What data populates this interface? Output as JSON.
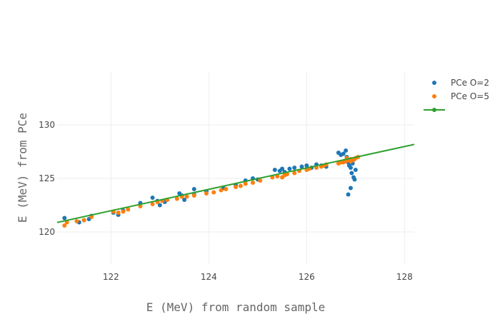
{
  "chart_data": {
    "type": "scatter",
    "title": "",
    "xlabel": "E (MeV) from random sample",
    "ylabel": "E (MeV) from PCe",
    "xlim": [
      120.9,
      128.2
    ],
    "ylim": [
      117.0,
      135.0
    ],
    "x_ticks": [
      122,
      124,
      126,
      128
    ],
    "y_ticks": [
      120,
      125,
      130
    ],
    "grid": true,
    "legend_position": "top-right",
    "series": [
      {
        "name": "PCe O=2",
        "color": "#1f77b4",
        "mode": "markers",
        "x": [
          121.05,
          121.35,
          121.45,
          121.6,
          121.55,
          122.05,
          122.15,
          122.25,
          122.6,
          122.85,
          122.95,
          123.0,
          123.1,
          123.4,
          123.45,
          123.5,
          123.7,
          123.7,
          123.95,
          124.3,
          124.55,
          124.75,
          124.9,
          125.0,
          125.35,
          125.45,
          125.5,
          125.55,
          125.65,
          125.75,
          125.9,
          126.0,
          126.1,
          126.2,
          126.3,
          126.4,
          126.65,
          126.7,
          126.75,
          126.8,
          126.82,
          126.85,
          126.87,
          126.88,
          126.9,
          126.92,
          126.94,
          126.96,
          126.98,
          127.0,
          126.85,
          126.9
        ],
        "y": [
          121.3,
          120.9,
          121.1,
          121.5,
          121.2,
          121.8,
          121.6,
          122.0,
          122.7,
          123.2,
          122.9,
          122.5,
          122.8,
          123.6,
          123.4,
          123.0,
          124.0,
          123.5,
          123.8,
          124.1,
          124.4,
          124.8,
          125.0,
          124.9,
          125.8,
          125.7,
          125.9,
          125.6,
          125.9,
          126.0,
          126.1,
          126.2,
          126.0,
          126.3,
          126.2,
          126.1,
          127.4,
          127.2,
          127.3,
          127.6,
          127.0,
          126.5,
          126.2,
          126.7,
          126.0,
          125.5,
          126.4,
          125.1,
          124.9,
          125.8,
          123.5,
          124.1
        ]
      },
      {
        "name": "PCe O=5",
        "color": "#ff7f0e",
        "mode": "markers",
        "x": [
          121.05,
          121.1,
          121.3,
          121.45,
          121.6,
          122.05,
          122.15,
          122.25,
          122.35,
          122.6,
          122.85,
          122.95,
          123.05,
          123.15,
          123.35,
          123.45,
          123.55,
          123.7,
          123.95,
          124.1,
          124.25,
          124.35,
          124.55,
          124.65,
          124.75,
          124.9,
          125.05,
          125.3,
          125.4,
          125.5,
          125.55,
          125.6,
          125.75,
          125.85,
          126.0,
          126.05,
          126.2,
          126.3,
          126.35,
          126.4,
          126.65,
          126.75,
          126.8,
          126.85,
          126.9,
          126.95,
          127.0,
          127.05,
          126.7,
          126.82,
          126.9,
          126.98
        ],
        "y": [
          120.6,
          120.9,
          121.0,
          121.1,
          121.4,
          121.9,
          121.8,
          121.9,
          122.1,
          122.4,
          122.6,
          122.8,
          122.9,
          123.0,
          123.1,
          123.3,
          123.3,
          123.4,
          123.6,
          123.7,
          123.9,
          124.0,
          124.2,
          124.3,
          124.5,
          124.6,
          124.8,
          125.1,
          125.2,
          125.1,
          125.3,
          125.4,
          125.5,
          125.7,
          125.8,
          125.9,
          126.0,
          126.1,
          126.2,
          126.3,
          126.4,
          126.5,
          126.6,
          126.7,
          126.8,
          126.7,
          126.9,
          127.0,
          126.5,
          126.9,
          126.6,
          126.8
        ]
      },
      {
        "name": "",
        "color": "#2ca02c",
        "mode": "lines",
        "x": [
          120.9,
          128.2
        ],
        "y": [
          120.88,
          128.18
        ]
      }
    ]
  }
}
